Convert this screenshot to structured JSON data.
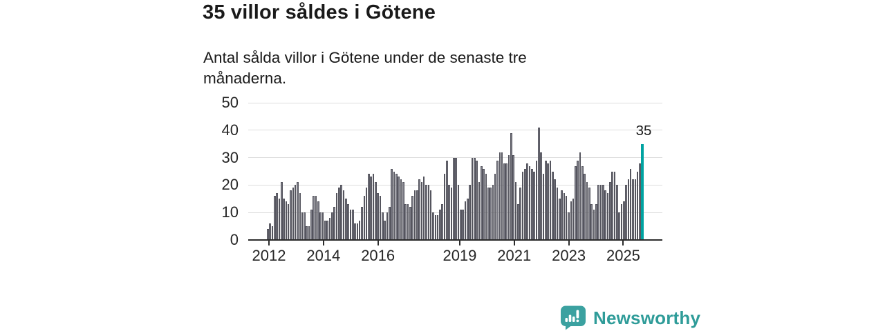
{
  "chart_data": {
    "type": "bar",
    "title": "35 villor såldes i Götene",
    "subtitle": "Antal sålda villor i Götene under de senaste tre månaderna.",
    "unit": "sålda villor (rullande tremånaderssumma)",
    "frequency": "monthly",
    "start_year": 2012,
    "start_month": 1,
    "values": [
      4,
      6,
      5,
      16,
      17,
      15,
      21,
      15,
      14,
      13,
      18,
      19,
      20,
      21,
      17,
      10,
      10,
      5,
      5,
      11,
      16,
      16,
      14,
      10,
      10,
      7,
      7,
      8,
      10,
      12,
      17,
      19,
      20,
      18,
      15,
      13,
      11,
      11,
      6,
      6,
      7,
      12,
      16,
      19,
      24,
      23,
      24,
      21,
      17,
      16,
      10,
      7,
      10,
      12,
      26,
      25,
      24,
      23,
      22,
      21,
      13,
      13,
      12,
      16,
      18,
      18,
      22,
      21,
      23,
      20,
      20,
      18,
      10,
      9,
      9,
      11,
      13,
      24,
      29,
      20,
      19,
      30,
      30,
      20,
      11,
      11,
      14,
      15,
      20,
      30,
      30,
      29,
      21,
      27,
      26,
      24,
      19,
      19,
      20,
      24,
      29,
      32,
      32,
      28,
      28,
      31,
      39,
      31,
      21,
      13,
      19,
      25,
      26,
      28,
      27,
      26,
      25,
      29,
      41,
      32,
      24,
      29,
      28,
      29,
      25,
      22,
      19,
      15,
      18,
      17,
      16,
      10,
      14,
      15,
      27,
      29,
      32,
      27,
      24,
      21,
      19,
      13,
      11,
      13,
      20,
      20,
      20,
      18,
      17,
      21,
      25,
      25,
      20,
      10,
      13,
      14,
      20,
      22,
      26,
      22,
      22,
      25,
      28,
      35
    ],
    "highlight_last": true,
    "last_value": 35,
    "annotation": {
      "text": "35"
    },
    "ylim": [
      0,
      50
    ],
    "yticks": [
      0,
      10,
      20,
      30,
      40,
      50
    ],
    "xticks": [
      2012,
      2014,
      2016,
      2019,
      2021,
      2023,
      2025
    ],
    "grid": true,
    "legend": "none",
    "colors": {
      "bar": "#7b7b85",
      "bar_outline": "#55555e",
      "highlight": "#00a3a1",
      "gridline": "#dcdcdc",
      "axis": "#2b2b2b",
      "text": "#1a1a1a"
    }
  },
  "branding": {
    "logo_text": "Newsworthy",
    "logo_icon": "speech-bubble-bar-chart-icon",
    "logo_color": "#3ba1a0"
  }
}
